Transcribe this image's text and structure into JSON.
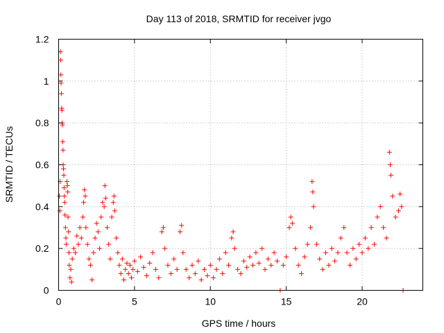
{
  "chart_data": {
    "type": "scatter",
    "title": "Day 113 of 2018, SRMTID for receiver jvgo",
    "xlabel": "GPS time / hours",
    "ylabel": "SRMTID / TECUs",
    "xlim": [
      0,
      24
    ],
    "ylim": [
      0,
      1.2
    ],
    "xticks": [
      0,
      5,
      10,
      15,
      20
    ],
    "xtick_labels": [
      "0",
      "5",
      "10",
      "15",
      "20"
    ],
    "yticks": [
      0,
      0.2,
      0.4,
      0.6,
      0.8,
      1,
      1.2
    ],
    "ytick_labels": [
      "0",
      "0.2",
      "0.4",
      "0.6",
      "0.8",
      "1",
      "1.2"
    ],
    "grid": true,
    "marker": "+",
    "color": "#ff0000",
    "series": [
      {
        "name": "jvgo",
        "points": [
          [
            0.05,
            0.45
          ],
          [
            0.08,
            0.38
          ],
          [
            0.1,
            0.52
          ],
          [
            0.12,
            1.14
          ],
          [
            0.14,
            1.1
          ],
          [
            0.15,
            1.03
          ],
          [
            0.16,
            0.99
          ],
          [
            0.18,
            0.94
          ],
          [
            0.2,
            0.87
          ],
          [
            0.22,
            0.86
          ],
          [
            0.24,
            0.8
          ],
          [
            0.25,
            0.79
          ],
          [
            0.27,
            0.71
          ],
          [
            0.29,
            0.67
          ],
          [
            0.3,
            0.6
          ],
          [
            0.32,
            0.58
          ],
          [
            0.34,
            0.55
          ],
          [
            0.36,
            0.49
          ],
          [
            0.38,
            0.45
          ],
          [
            0.4,
            0.42
          ],
          [
            0.42,
            0.36
          ],
          [
            0.45,
            0.3
          ],
          [
            0.48,
            0.25
          ],
          [
            0.5,
            0.22
          ],
          [
            0.55,
            0.52
          ],
          [
            0.58,
            0.5
          ],
          [
            0.6,
            0.47
          ],
          [
            0.62,
            0.35
          ],
          [
            0.65,
            0.28
          ],
          [
            0.68,
            0.18
          ],
          [
            0.7,
            0.12
          ],
          [
            0.75,
            0.06
          ],
          [
            0.8,
            0.1
          ],
          [
            0.85,
            0.04
          ],
          [
            0.9,
            0.15
          ],
          [
            1.0,
            0.2
          ],
          [
            1.1,
            0.18
          ],
          [
            1.2,
            0.26
          ],
          [
            1.3,
            0.22
          ],
          [
            1.4,
            0.3
          ],
          [
            1.5,
            0.25
          ],
          [
            1.6,
            0.35
          ],
          [
            1.65,
            0.42
          ],
          [
            1.7,
            0.48
          ],
          [
            1.75,
            0.45
          ],
          [
            1.8,
            0.3
          ],
          [
            1.9,
            0.22
          ],
          [
            2.0,
            0.15
          ],
          [
            2.1,
            0.12
          ],
          [
            2.2,
            0.05
          ],
          [
            2.3,
            0.18
          ],
          [
            2.4,
            0.25
          ],
          [
            2.5,
            0.32
          ],
          [
            2.6,
            0.28
          ],
          [
            2.7,
            0.2
          ],
          [
            2.8,
            0.35
          ],
          [
            2.9,
            0.42
          ],
          [
            3.0,
            0.4
          ],
          [
            3.05,
            0.5
          ],
          [
            3.1,
            0.44
          ],
          [
            3.2,
            0.3
          ],
          [
            3.3,
            0.22
          ],
          [
            3.4,
            0.15
          ],
          [
            3.5,
            0.35
          ],
          [
            3.6,
            0.42
          ],
          [
            3.65,
            0.45
          ],
          [
            3.7,
            0.38
          ],
          [
            3.8,
            0.25
          ],
          [
            3.9,
            0.18
          ],
          [
            4.0,
            0.12
          ],
          [
            4.1,
            0.08
          ],
          [
            4.2,
            0.15
          ],
          [
            4.3,
            0.05
          ],
          [
            4.4,
            0.1
          ],
          [
            4.5,
            0.13
          ],
          [
            4.6,
            0.08
          ],
          [
            4.7,
            0.12
          ],
          [
            4.8,
            0.06
          ],
          [
            4.9,
            0.1
          ],
          [
            5.0,
            0.14
          ],
          [
            5.2,
            0.09
          ],
          [
            5.4,
            0.16
          ],
          [
            5.6,
            0.11
          ],
          [
            5.8,
            0.07
          ],
          [
            6.0,
            0.13
          ],
          [
            6.2,
            0.18
          ],
          [
            6.4,
            0.1
          ],
          [
            6.6,
            0.06
          ],
          [
            6.8,
            0.28
          ],
          [
            6.9,
            0.3
          ],
          [
            7.0,
            0.2
          ],
          [
            7.2,
            0.12
          ],
          [
            7.4,
            0.08
          ],
          [
            7.6,
            0.15
          ],
          [
            7.8,
            0.1
          ],
          [
            8.0,
            0.28
          ],
          [
            8.1,
            0.31
          ],
          [
            8.2,
            0.18
          ],
          [
            8.4,
            0.1
          ],
          [
            8.6,
            0.06
          ],
          [
            8.8,
            0.12
          ],
          [
            9.0,
            0.08
          ],
          [
            9.2,
            0.14
          ],
          [
            9.4,
            0.05
          ],
          [
            9.6,
            0.1
          ],
          [
            9.8,
            0.07
          ],
          [
            10.0,
            0.12
          ],
          [
            10.2,
            0.06
          ],
          [
            10.4,
            0.1
          ],
          [
            10.6,
            0.15
          ],
          [
            10.8,
            0.08
          ],
          [
            11.0,
            0.18
          ],
          [
            11.2,
            0.12
          ],
          [
            11.4,
            0.25
          ],
          [
            11.5,
            0.28
          ],
          [
            11.6,
            0.2
          ],
          [
            11.8,
            0.1
          ],
          [
            12.0,
            0.08
          ],
          [
            12.2,
            0.14
          ],
          [
            12.4,
            0.11
          ],
          [
            12.6,
            0.16
          ],
          [
            12.8,
            0.12
          ],
          [
            13.0,
            0.18
          ],
          [
            13.2,
            0.13
          ],
          [
            13.4,
            0.2
          ],
          [
            13.6,
            0.1
          ],
          [
            13.8,
            0.15
          ],
          [
            14.0,
            0.12
          ],
          [
            14.2,
            0.18
          ],
          [
            14.4,
            0.14
          ],
          [
            14.6,
            0.0
          ],
          [
            14.8,
            0.12
          ],
          [
            15.0,
            0.16
          ],
          [
            15.2,
            0.3
          ],
          [
            15.3,
            0.35
          ],
          [
            15.4,
            0.32
          ],
          [
            15.6,
            0.2
          ],
          [
            15.8,
            0.12
          ],
          [
            16.0,
            0.08
          ],
          [
            16.2,
            0.16
          ],
          [
            16.4,
            0.22
          ],
          [
            16.6,
            0.3
          ],
          [
            16.7,
            0.52
          ],
          [
            16.75,
            0.47
          ],
          [
            16.8,
            0.4
          ],
          [
            17.0,
            0.22
          ],
          [
            17.2,
            0.15
          ],
          [
            17.4,
            0.1
          ],
          [
            17.6,
            0.18
          ],
          [
            17.8,
            0.12
          ],
          [
            18.0,
            0.2
          ],
          [
            18.2,
            0.14
          ],
          [
            18.4,
            0.18
          ],
          [
            18.6,
            0.25
          ],
          [
            18.8,
            0.3
          ],
          [
            19.0,
            0.18
          ],
          [
            19.2,
            0.12
          ],
          [
            19.4,
            0.2
          ],
          [
            19.6,
            0.15
          ],
          [
            19.8,
            0.22
          ],
          [
            20.0,
            0.18
          ],
          [
            20.2,
            0.25
          ],
          [
            20.4,
            0.2
          ],
          [
            20.6,
            0.3
          ],
          [
            20.8,
            0.22
          ],
          [
            21.0,
            0.35
          ],
          [
            21.2,
            0.4
          ],
          [
            21.4,
            0.3
          ],
          [
            21.6,
            0.25
          ],
          [
            21.8,
            0.66
          ],
          [
            21.85,
            0.6
          ],
          [
            21.9,
            0.55
          ],
          [
            22.0,
            0.45
          ],
          [
            22.2,
            0.35
          ],
          [
            22.4,
            0.38
          ],
          [
            22.5,
            0.46
          ],
          [
            22.6,
            0.4
          ],
          [
            22.7,
            0.0
          ]
        ]
      }
    ]
  }
}
